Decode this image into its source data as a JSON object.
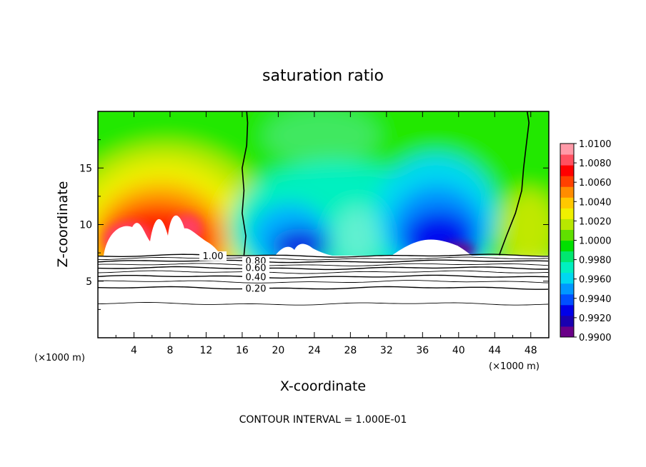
{
  "chart_data": {
    "type": "heatmap",
    "title": "saturation ratio",
    "xlabel": "X-coordinate",
    "ylabel": "Z-coordinate",
    "x_unit_label": "(×1000 m)",
    "y_unit_label": "(×1000 m)",
    "xlim": [
      0,
      50
    ],
    "ylim": [
      0,
      20
    ],
    "x_ticks": [
      "4",
      "8",
      "12",
      "16",
      "20",
      "24",
      "28",
      "32",
      "36",
      "40",
      "44",
      "48"
    ],
    "y_ticks": [
      "5",
      "10",
      "15"
    ],
    "grid": false,
    "colorbar": {
      "position": "right",
      "min": 0.99,
      "max": 1.01,
      "labels": [
        "1.0100",
        "1.0080",
        "1.0060",
        "1.0040",
        "1.0020",
        "1.0000",
        "0.9980",
        "0.9960",
        "0.9940",
        "0.9920",
        "0.9900"
      ],
      "colors": [
        "#6a0088",
        "#1a00b0",
        "#0000e8",
        "#0050ff",
        "#0098ff",
        "#00d8f0",
        "#00f0c0",
        "#00e870",
        "#00e000",
        "#60e000",
        "#b8e800",
        "#f0f000",
        "#ffc800",
        "#ff8c00",
        "#ff4000",
        "#ff0000",
        "#ff5060",
        "#ff9aa8"
      ]
    },
    "saturated_region_below_z": 7.3,
    "contour_lines": {
      "interval_text": "CONTOUR INTERVAL = 1.000E-01",
      "labeled_levels": [
        "1.00",
        "0.80",
        "0.60",
        "0.40",
        "0.20"
      ],
      "levels": [
        {
          "value": 1.0,
          "z": 7.25
        },
        {
          "value": 0.9,
          "z": 7.0
        },
        {
          "value": 0.8,
          "z": 6.75
        },
        {
          "value": 0.7,
          "z": 6.45
        },
        {
          "value": 0.6,
          "z": 6.15
        },
        {
          "value": 0.5,
          "z": 5.8
        },
        {
          "value": 0.4,
          "z": 5.4
        },
        {
          "value": 0.3,
          "z": 4.95
        },
        {
          "value": 0.2,
          "z": 4.4
        },
        {
          "value": 0.1,
          "z": 3.0
        }
      ],
      "ratio_1_boundaries": [
        {
          "z": [
            7.3,
            9,
            11,
            13,
            15,
            17,
            19,
            20
          ],
          "x": [
            16.2,
            16.4,
            16.0,
            16.2,
            16.0,
            16.5,
            16.6,
            16.5
          ]
        },
        {
          "z": [
            7.3,
            9,
            11,
            13,
            15,
            17,
            19,
            20
          ],
          "x": [
            44.5,
            45.3,
            46.3,
            47.0,
            47.2,
            47.5,
            47.8,
            47.6
          ]
        }
      ]
    }
  }
}
